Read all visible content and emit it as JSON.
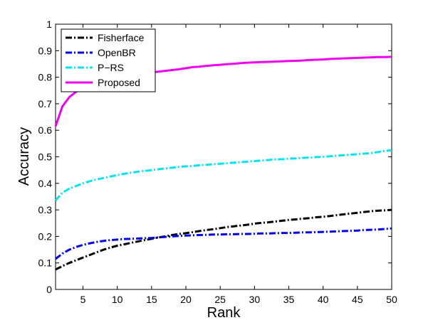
{
  "chart_data": {
    "type": "line",
    "xlabel": "Rank",
    "ylabel": "Accuracy",
    "xlim": [
      1,
      50
    ],
    "ylim": [
      0,
      1
    ],
    "xticks": [
      5,
      10,
      15,
      20,
      25,
      30,
      35,
      40,
      45,
      50
    ],
    "yticks": [
      0,
      0.1,
      0.2,
      0.3,
      0.4,
      0.5,
      0.6,
      0.7,
      0.8,
      0.9,
      1
    ],
    "ytick_labels": [
      "0",
      "0.1",
      "0.2",
      "0.3",
      "0.4",
      "0.5",
      "0.6",
      "0.7",
      "0.8",
      "0.9",
      "1"
    ],
    "grid": false,
    "legend_position": "top-left",
    "x": [
      1,
      2,
      3,
      4,
      5,
      6,
      7,
      8,
      9,
      10,
      11,
      12,
      13,
      14,
      15,
      16,
      17,
      18,
      19,
      20,
      21,
      22,
      23,
      24,
      25,
      26,
      27,
      28,
      29,
      30,
      31,
      32,
      33,
      34,
      35,
      36,
      37,
      38,
      39,
      40,
      41,
      42,
      43,
      44,
      45,
      46,
      47,
      48,
      49,
      50
    ],
    "series": [
      {
        "name": "Fisherface",
        "color": "#000000",
        "style": "dash-dot",
        "values": [
          0.075,
          0.088,
          0.1,
          0.11,
          0.12,
          0.13,
          0.14,
          0.15,
          0.158,
          0.165,
          0.17,
          0.176,
          0.181,
          0.186,
          0.191,
          0.196,
          0.2,
          0.205,
          0.209,
          0.212,
          0.216,
          0.22,
          0.224,
          0.227,
          0.231,
          0.235,
          0.238,
          0.241,
          0.244,
          0.248,
          0.251,
          0.253,
          0.256,
          0.259,
          0.262,
          0.264,
          0.267,
          0.269,
          0.272,
          0.274,
          0.277,
          0.28,
          0.283,
          0.286,
          0.289,
          0.292,
          0.295,
          0.297,
          0.298,
          0.3
        ]
      },
      {
        "name": "OpenBR",
        "color": "#0000ee",
        "style": "dash-dot",
        "values": [
          0.115,
          0.135,
          0.15,
          0.16,
          0.168,
          0.174,
          0.179,
          0.183,
          0.186,
          0.188,
          0.19,
          0.191,
          0.192,
          0.193,
          0.194,
          0.196,
          0.198,
          0.2,
          0.202,
          0.203,
          0.204,
          0.205,
          0.206,
          0.207,
          0.207,
          0.208,
          0.208,
          0.209,
          0.209,
          0.21,
          0.211,
          0.211,
          0.212,
          0.213,
          0.213,
          0.214,
          0.215,
          0.215,
          0.216,
          0.217,
          0.218,
          0.219,
          0.22,
          0.221,
          0.222,
          0.224,
          0.225,
          0.226,
          0.228,
          0.23
        ]
      },
      {
        "name": "P−RS",
        "color": "#00e5ee",
        "style": "dash-dot",
        "values": [
          0.335,
          0.365,
          0.38,
          0.39,
          0.4,
          0.408,
          0.415,
          0.42,
          0.426,
          0.431,
          0.436,
          0.44,
          0.444,
          0.447,
          0.45,
          0.453,
          0.456,
          0.459,
          0.462,
          0.464,
          0.466,
          0.468,
          0.47,
          0.472,
          0.474,
          0.476,
          0.478,
          0.48,
          0.482,
          0.484,
          0.486,
          0.488,
          0.49,
          0.491,
          0.493,
          0.494,
          0.496,
          0.497,
          0.499,
          0.5,
          0.502,
          0.504,
          0.506,
          0.508,
          0.51,
          0.512,
          0.514,
          0.518,
          0.522,
          0.525
        ]
      },
      {
        "name": "Proposed",
        "color": "#ee00ee",
        "style": "solid",
        "values": [
          0.615,
          0.69,
          0.725,
          0.745,
          0.76,
          0.77,
          0.778,
          0.786,
          0.792,
          0.798,
          0.803,
          0.807,
          0.811,
          0.815,
          0.818,
          0.821,
          0.824,
          0.827,
          0.83,
          0.834,
          0.838,
          0.84,
          0.843,
          0.845,
          0.847,
          0.849,
          0.851,
          0.853,
          0.855,
          0.856,
          0.857,
          0.858,
          0.859,
          0.86,
          0.861,
          0.862,
          0.863,
          0.865,
          0.866,
          0.867,
          0.869,
          0.87,
          0.871,
          0.872,
          0.873,
          0.874,
          0.875,
          0.876,
          0.876,
          0.877
        ]
      }
    ]
  }
}
